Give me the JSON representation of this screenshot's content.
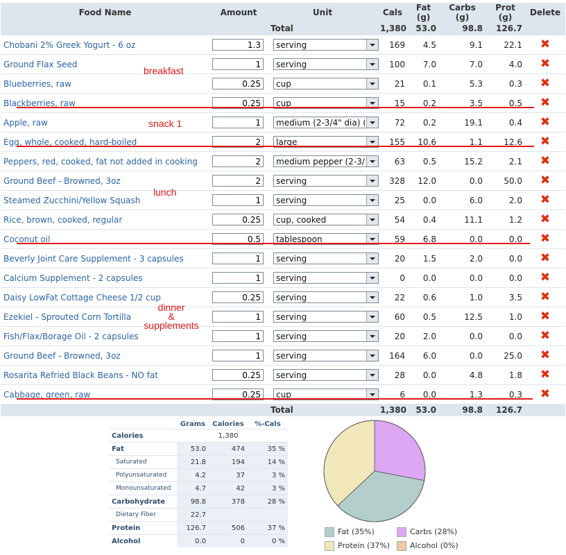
{
  "headers": {
    "food": "Food Name",
    "amount": "Amount",
    "unit": "Unit",
    "cals": "Cals",
    "fat": "Fat (g)",
    "carbs": "Carbs (g)",
    "prot": "Prot (g)",
    "delete": "Delete"
  },
  "total": {
    "label": "Total",
    "cals": "1,380",
    "fat": "53.0",
    "carbs": "98.8",
    "prot": "126.7"
  },
  "foods": [
    {
      "name": "Chobani 2% Greek Yogurt - 6 oz",
      "amount": "1.3",
      "unit": "serving",
      "cals": "169",
      "fat": "4.5",
      "carbs": "9.1",
      "prot": "22.1"
    },
    {
      "name": "Ground Flax Seed",
      "amount": "1",
      "unit": "serving",
      "cals": "100",
      "fat": "7.0",
      "carbs": "7.0",
      "prot": "4.0"
    },
    {
      "name": "Blueberries, raw",
      "amount": "0.25",
      "unit": "cup",
      "cals": "21",
      "fat": "0.1",
      "carbs": "5.3",
      "prot": "0.3"
    },
    {
      "name": "Blackberries, raw",
      "amount": "0.25",
      "unit": "cup",
      "cals": "15",
      "fat": "0.2",
      "carbs": "3.5",
      "prot": "0.5"
    },
    {
      "name": "Apple, raw",
      "amount": "1",
      "unit": "medium (2-3/4\" dia) (a",
      "cals": "72",
      "fat": "0.2",
      "carbs": "19.1",
      "prot": "0.4"
    },
    {
      "name": "Egg, whole, cooked, hard-boiled",
      "amount": "2",
      "unit": "large",
      "cals": "155",
      "fat": "10.6",
      "carbs": "1.1",
      "prot": "12.6"
    },
    {
      "name": "Peppers, red, cooked, fat not added in cooking",
      "amount": "2",
      "unit": "medium pepper (2-3/4'",
      "cals": "63",
      "fat": "0.5",
      "carbs": "15.2",
      "prot": "2.1"
    },
    {
      "name": "Ground Beef - Browned, 3oz",
      "amount": "2",
      "unit": "serving",
      "cals": "328",
      "fat": "12.0",
      "carbs": "0.0",
      "prot": "50.0"
    },
    {
      "name": "Steamed Zucchini/Yellow Squash",
      "amount": "1",
      "unit": "serving",
      "cals": "25",
      "fat": "0.0",
      "carbs": "6.0",
      "prot": "2.0"
    },
    {
      "name": "Rice, brown, cooked, regular",
      "amount": "0.25",
      "unit": "cup, cooked",
      "cals": "54",
      "fat": "0.4",
      "carbs": "11.1",
      "prot": "1.2"
    },
    {
      "name": "Coconut oil",
      "amount": "0.5",
      "unit": "tablespoon",
      "cals": "59",
      "fat": "6.8",
      "carbs": "0.0",
      "prot": "0.0"
    },
    {
      "name": "Beverly Joint Care Supplement - 3 capsules",
      "amount": "1",
      "unit": "serving",
      "cals": "20",
      "fat": "1.5",
      "carbs": "2.0",
      "prot": "0.0"
    },
    {
      "name": "Calcium Supplement - 2 capsules",
      "amount": "1",
      "unit": "serving",
      "cals": "0",
      "fat": "0.0",
      "carbs": "0.0",
      "prot": "0.0"
    },
    {
      "name": "Daisy LowFat Cottage Cheese 1/2 cup",
      "amount": "0.25",
      "unit": "serving",
      "cals": "22",
      "fat": "0.6",
      "carbs": "1.0",
      "prot": "3.5"
    },
    {
      "name": "Ezekiel - Sprouted Corn Tortilla",
      "amount": "1",
      "unit": "serving",
      "cals": "60",
      "fat": "0.5",
      "carbs": "12.5",
      "prot": "1.0"
    },
    {
      "name": "Fish/Flax/Borage Oil - 2 capsules",
      "amount": "1",
      "unit": "serving",
      "cals": "20",
      "fat": "2.0",
      "carbs": "0.0",
      "prot": "0.0"
    },
    {
      "name": "Ground Beef - Browned, 3oz",
      "amount": "1",
      "unit": "serving",
      "cals": "164",
      "fat": "6.0",
      "carbs": "0.0",
      "prot": "25.0"
    },
    {
      "name": "Rosarita Refried Black Beans - NO fat",
      "amount": "0.25",
      "unit": "serving",
      "cals": "28",
      "fat": "0.0",
      "carbs": "4.8",
      "prot": "1.8"
    },
    {
      "name": "Cabbage, green, raw",
      "amount": "0.25",
      "unit": "cup",
      "cals": "6",
      "fat": "0.0",
      "carbs": "1.3",
      "prot": "0.3"
    }
  ],
  "delete_symbol": "✖",
  "annotations": {
    "breakfast": "breakfast",
    "snack1": "snack 1",
    "lunch": "lunch",
    "dinner_line1": "dinner",
    "dinner_line2": "&",
    "dinner_line3": "supplements"
  },
  "summary": {
    "headers": {
      "grams": "Grams",
      "calories": "Calories",
      "pct": "%-Cals"
    },
    "rows": [
      {
        "label": "Calories",
        "grams": "",
        "calories": "1,380",
        "pct": ""
      },
      {
        "label": "Fat",
        "grams": "53.0",
        "calories": "474",
        "pct": "35 %"
      },
      {
        "label": "Saturated",
        "grams": "21.8",
        "calories": "194",
        "pct": "14 %"
      },
      {
        "label": "Polyunsaturated",
        "grams": "4.2",
        "calories": "37",
        "pct": "3 %"
      },
      {
        "label": "Monounsaturated",
        "grams": "4.7",
        "calories": "42",
        "pct": "3 %"
      },
      {
        "label": "Carbohydrate",
        "grams": "98.8",
        "calories": "378",
        "pct": "28 %"
      },
      {
        "label": "Dietary Fiber",
        "grams": "22.7",
        "calories": "",
        "pct": ""
      },
      {
        "label": "Protein",
        "grams": "126.7",
        "calories": "506",
        "pct": "37 %"
      },
      {
        "label": "Alcohol",
        "grams": "0.0",
        "calories": "0",
        "pct": "0 %"
      }
    ]
  },
  "chart_data": {
    "type": "pie",
    "categories": [
      "Fat",
      "Carbs",
      "Protein",
      "Alcohol"
    ],
    "values": [
      35,
      28,
      37,
      0
    ],
    "legend_labels": [
      "Fat  (35%)",
      "Carbs  (28%)",
      "Protein  (37%)",
      "Alcohol  (0%)"
    ],
    "colors": [
      "#b4cfcb",
      "#dea7f4",
      "#f2e7bb",
      "#f0caa4"
    ],
    "legend_position": "bottom"
  }
}
